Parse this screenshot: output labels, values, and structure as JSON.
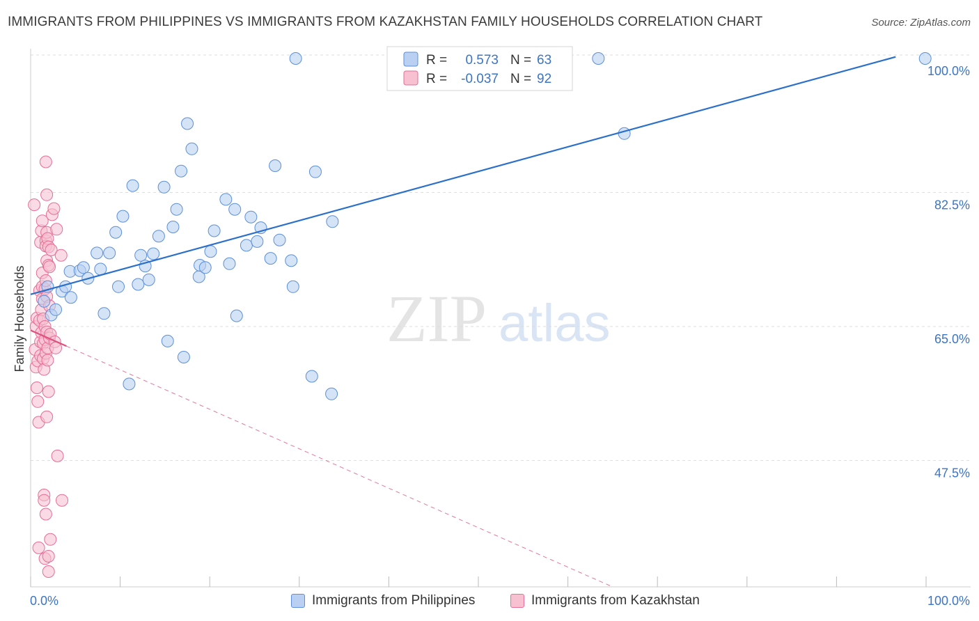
{
  "header": {
    "title": "IMMIGRANTS FROM PHILIPPINES VS IMMIGRANTS FROM KAZAKHSTAN FAMILY HOUSEHOLDS CORRELATION CHART",
    "source": "Source: ZipAtlas.com"
  },
  "watermark": {
    "zip": "ZIP",
    "atlas": "atlas"
  },
  "colors": {
    "blue": "#5b8fd9",
    "blue_fill": "#b9d0f2",
    "blue_line": "#2a6fc9",
    "pink": "#e66d95",
    "pink_fill": "#f7c1d2",
    "pink_line": "#e0517f",
    "axis_text": "#3c74c4",
    "grid": "#dddddd"
  },
  "legend": {
    "series1": {
      "r_label": "R =",
      "r_value": "0.573",
      "n_label": "N =",
      "n_value": "63"
    },
    "series2": {
      "r_label": "R =",
      "r_value": "-0.037",
      "n_label": "N =",
      "n_value": "92"
    }
  },
  "chart_data": {
    "type": "scatter",
    "title": "IMMIGRANTS FROM PHILIPPINES VS IMMIGRANTS FROM KAZAKHSTAN FAMILY HOUSEHOLDS CORRELATION CHART",
    "xlabel": "",
    "ylabel": "Family Households",
    "xlim": [
      0,
      100
    ],
    "ylim": [
      31,
      102
    ],
    "x_tick_labels": {
      "min": "0.0%",
      "max": "100.0%"
    },
    "y_ticks": [
      {
        "value": 100,
        "label": "100.0%"
      },
      {
        "value": 82.5,
        "label": "82.5%"
      },
      {
        "value": 65,
        "label": "65.0%"
      },
      {
        "value": 47.5,
        "label": "47.5%"
      }
    ],
    "legend_position": "bottom",
    "series": [
      {
        "name": "Immigrants from Philippines",
        "color": "#5b8fd9",
        "r": 0.573,
        "n": 63,
        "trend": {
          "x0": 0,
          "y0": 69.2,
          "x1": 100,
          "y1": 101.3,
          "dash_x_from": null
        },
        "points": [
          [
            1.5,
            68.3
          ],
          [
            1.9,
            70.2
          ],
          [
            2.3,
            66.5
          ],
          [
            2.8,
            67.2
          ],
          [
            3.5,
            69.6
          ],
          [
            3.9,
            70.2
          ],
          [
            4.5,
            68.8
          ],
          [
            4.4,
            72.2
          ],
          [
            5.5,
            72.3
          ],
          [
            5.9,
            72.7
          ],
          [
            6.4,
            71.3
          ],
          [
            7.4,
            74.6
          ],
          [
            7.8,
            72.5
          ],
          [
            8.2,
            66.7
          ],
          [
            8.8,
            74.6
          ],
          [
            9.5,
            77.3
          ],
          [
            9.8,
            70.2
          ],
          [
            10.3,
            79.4
          ],
          [
            11.0,
            57.5
          ],
          [
            11.4,
            83.4
          ],
          [
            12.0,
            70.5
          ],
          [
            12.3,
            74.3
          ],
          [
            12.8,
            72.9
          ],
          [
            13.2,
            71.1
          ],
          [
            13.7,
            74.5
          ],
          [
            14.3,
            76.8
          ],
          [
            14.9,
            83.2
          ],
          [
            15.3,
            63.1
          ],
          [
            15.9,
            78.0
          ],
          [
            16.3,
            80.3
          ],
          [
            16.8,
            85.3
          ],
          [
            17.1,
            61.0
          ],
          [
            17.5,
            91.5
          ],
          [
            18.0,
            88.2
          ],
          [
            18.8,
            71.5
          ],
          [
            18.9,
            73.0
          ],
          [
            19.5,
            72.7
          ],
          [
            20.1,
            74.8
          ],
          [
            20.5,
            77.5
          ],
          [
            21.8,
            81.6
          ],
          [
            22.2,
            73.2
          ],
          [
            22.8,
            80.3
          ],
          [
            23.0,
            66.4
          ],
          [
            24.1,
            75.6
          ],
          [
            24.6,
            79.3
          ],
          [
            25.3,
            76.1
          ],
          [
            25.7,
            77.9
          ],
          [
            26.8,
            73.9
          ],
          [
            27.3,
            86.0
          ],
          [
            27.8,
            76.3
          ],
          [
            29.1,
            73.6
          ],
          [
            29.3,
            70.2
          ],
          [
            29.6,
            100.0
          ],
          [
            31.4,
            58.5
          ],
          [
            31.8,
            85.2
          ],
          [
            33.6,
            56.2
          ],
          [
            33.7,
            78.7
          ],
          [
            63.4,
            100.0
          ],
          [
            66.3,
            90.2
          ],
          [
            99.9,
            100.0
          ]
        ]
      },
      {
        "name": "Immigrants from Kazakhstan",
        "color": "#e66d95",
        "r": -0.037,
        "n": 92,
        "trend": {
          "x0": 0,
          "y0": 64.5,
          "x1": 65,
          "y1": 31,
          "dash_x_from": 4
        },
        "points": [
          [
            0.4,
            80.9
          ],
          [
            0.5,
            62.0
          ],
          [
            0.6,
            65.0
          ],
          [
            0.6,
            59.7
          ],
          [
            0.7,
            66.1
          ],
          [
            0.7,
            57.0
          ],
          [
            0.8,
            60.5
          ],
          [
            0.8,
            55.2
          ],
          [
            0.9,
            52.5
          ],
          [
            0.9,
            36.1
          ],
          [
            1.0,
            69.7
          ],
          [
            1.0,
            65.8
          ],
          [
            1.1,
            63.0
          ],
          [
            1.1,
            61.2
          ],
          [
            1.1,
            76.0
          ],
          [
            1.2,
            77.5
          ],
          [
            1.2,
            67.2
          ],
          [
            1.2,
            64.2
          ],
          [
            1.3,
            78.8
          ],
          [
            1.3,
            72.0
          ],
          [
            1.3,
            70.2
          ],
          [
            1.3,
            68.6
          ],
          [
            1.4,
            66.0
          ],
          [
            1.4,
            62.8
          ],
          [
            1.4,
            60.8
          ],
          [
            1.5,
            43.0
          ],
          [
            1.5,
            42.3
          ],
          [
            1.5,
            59.4
          ],
          [
            1.6,
            69.9
          ],
          [
            1.6,
            65.0
          ],
          [
            1.6,
            63.3
          ],
          [
            1.6,
            34.7
          ],
          [
            1.7,
            86.5
          ],
          [
            1.7,
            76.2
          ],
          [
            1.7,
            75.5
          ],
          [
            1.7,
            71.0
          ],
          [
            1.7,
            61.5
          ],
          [
            1.7,
            40.5
          ],
          [
            1.8,
            82.2
          ],
          [
            1.8,
            77.3
          ],
          [
            1.8,
            73.6
          ],
          [
            1.8,
            68.9
          ],
          [
            1.8,
            64.3
          ],
          [
            1.8,
            53.2
          ],
          [
            1.9,
            76.5
          ],
          [
            1.9,
            62.2
          ],
          [
            1.9,
            60.6
          ],
          [
            2.0,
            75.4
          ],
          [
            2.0,
            73.0
          ],
          [
            2.0,
            56.5
          ],
          [
            2.0,
            35.0
          ],
          [
            2.0,
            33.0
          ],
          [
            2.1,
            72.8
          ],
          [
            2.1,
            67.7
          ],
          [
            2.1,
            63.5
          ],
          [
            2.2,
            64.0
          ],
          [
            2.2,
            37.2
          ],
          [
            2.3,
            75.0
          ],
          [
            2.4,
            79.6
          ],
          [
            2.6,
            80.4
          ],
          [
            2.7,
            63.0
          ],
          [
            2.8,
            62.2
          ],
          [
            2.9,
            77.7
          ],
          [
            3.0,
            48.1
          ],
          [
            3.4,
            74.3
          ],
          [
            3.5,
            42.3
          ]
        ]
      }
    ]
  },
  "bottom_legend": {
    "series1_label": "Immigrants from Philippines",
    "series2_label": "Immigrants from Kazakhstan"
  }
}
